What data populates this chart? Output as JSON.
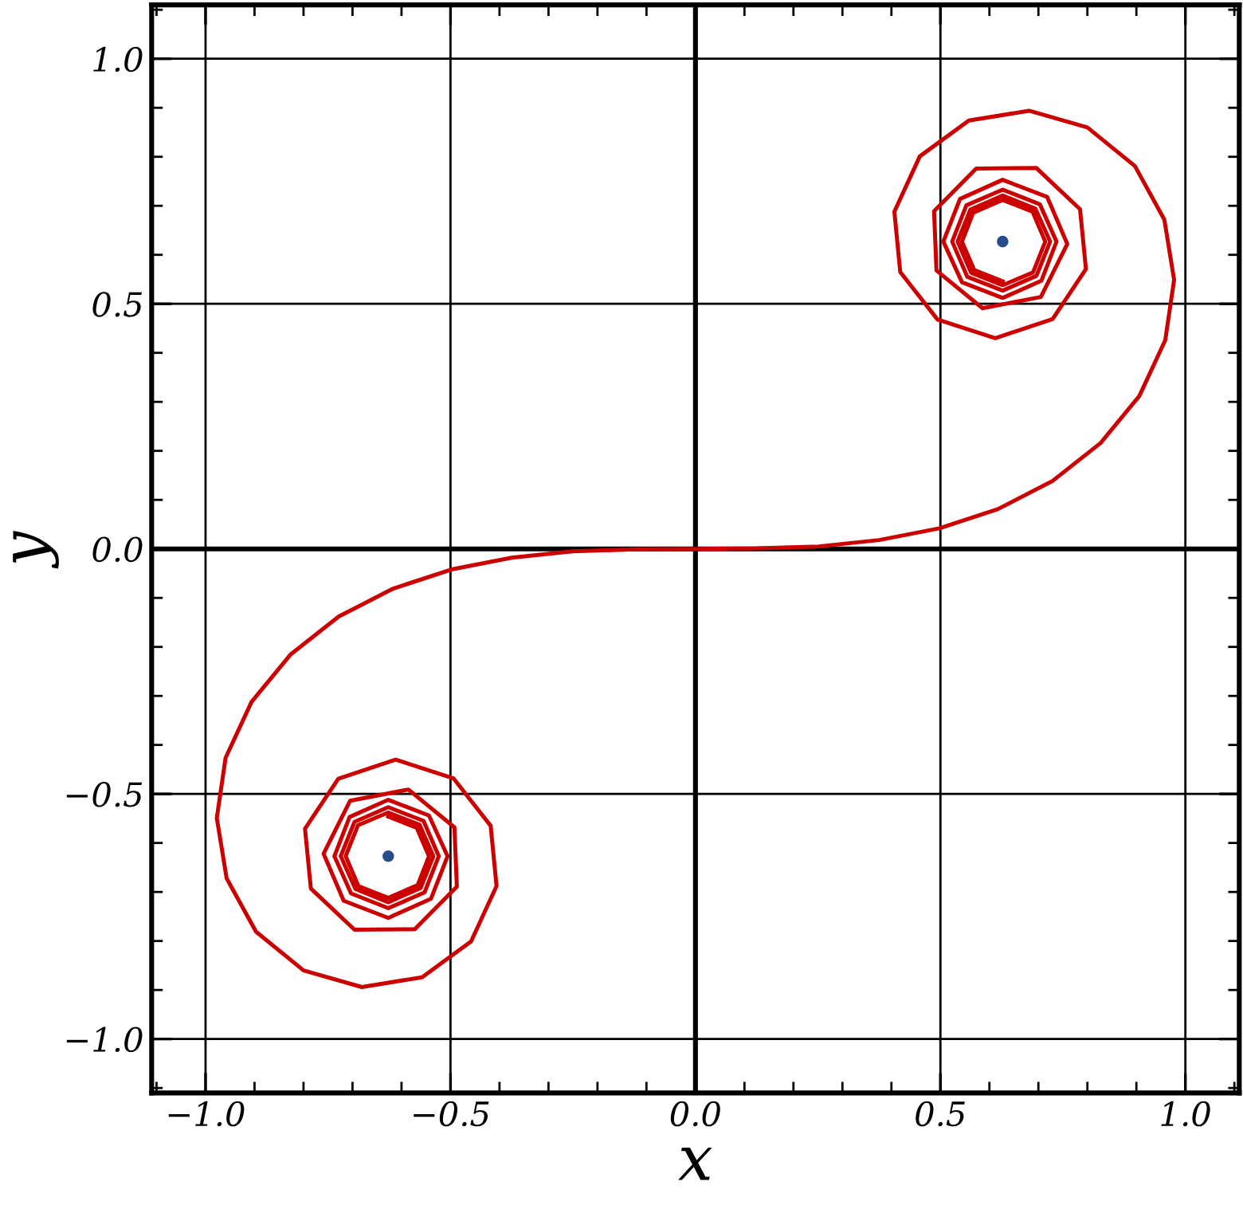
{
  "chart_data": {
    "type": "line",
    "xlabel": "x",
    "ylabel": "y",
    "xlim": [
      -1.11,
      1.11
    ],
    "ylim": [
      -1.11,
      1.11
    ],
    "xticks": [
      {
        "value": -1.0,
        "label": "−1.0"
      },
      {
        "value": -0.5,
        "label": "−0.5"
      },
      {
        "value": 0.0,
        "label": "0.0"
      },
      {
        "value": 0.5,
        "label": "0.5"
      },
      {
        "value": 1.0,
        "label": "1.0"
      }
    ],
    "yticks": [
      {
        "value": -1.0,
        "label": "−1.0"
      },
      {
        "value": -0.5,
        "label": "−0.5"
      },
      {
        "value": 0.0,
        "label": "0.0"
      },
      {
        "value": 0.5,
        "label": "0.5"
      },
      {
        "value": 1.0,
        "label": "1.0"
      }
    ],
    "grid": true,
    "marker": "none",
    "line_style": "solid",
    "series": [
      {
        "color": "#cc0000",
        "x": [
          -0.627,
          -0.569,
          -0.544,
          -0.567,
          -0.627,
          -0.688,
          -0.714,
          -0.689,
          -0.627,
          -0.563,
          -0.535,
          -0.561,
          -0.627,
          -0.694,
          -0.724,
          -0.696,
          -0.627,
          -0.555,
          -0.524,
          -0.553,
          -0.627,
          -0.703,
          -0.737,
          -0.706,
          -0.627,
          -0.544,
          -0.506,
          -0.54,
          -0.627,
          -0.718,
          -0.759,
          -0.705,
          -0.586,
          -0.492,
          -0.487,
          -0.573,
          -0.696,
          -0.785,
          -0.797,
          -0.729,
          -0.612,
          -0.494,
          -0.418,
          -0.406,
          -0.458,
          -0.558,
          -0.681,
          -0.8,
          -0.897,
          -0.957,
          -0.977,
          -0.959,
          -0.906,
          -0.827,
          -0.728,
          -0.617,
          -0.498,
          -0.375,
          -0.251,
          -0.125,
          0,
          0.125,
          0.251,
          0.375,
          0.498,
          0.617,
          0.728,
          0.827,
          0.906,
          0.959,
          0.977,
          0.957,
          0.897,
          0.8,
          0.681,
          0.558,
          0.458,
          0.406,
          0.418,
          0.494,
          0.612,
          0.729,
          0.797,
          0.785,
          0.696,
          0.573,
          0.487,
          0.492,
          0.586,
          0.705,
          0.759,
          0.718,
          0.627,
          0.54,
          0.506,
          0.544,
          0.627,
          0.706,
          0.737,
          0.703,
          0.627,
          0.553,
          0.524,
          0.555,
          0.627,
          0.696,
          0.724,
          0.694,
          0.627,
          0.561,
          0.535,
          0.563,
          0.627,
          0.689,
          0.714,
          0.688,
          0.627,
          0.567,
          0.544,
          0.569,
          0.627
        ],
        "values": [
          -0.546,
          -0.569,
          -0.627,
          -0.686,
          -0.712,
          -0.688,
          -0.627,
          -0.564,
          -0.538,
          -0.563,
          -0.627,
          -0.692,
          -0.721,
          -0.694,
          -0.627,
          -0.557,
          -0.527,
          -0.555,
          -0.627,
          -0.701,
          -0.733,
          -0.703,
          -0.627,
          -0.547,
          -0.512,
          -0.544,
          -0.627,
          -0.714,
          -0.753,
          -0.718,
          -0.622,
          -0.514,
          -0.491,
          -0.568,
          -0.689,
          -0.776,
          -0.777,
          -0.693,
          -0.571,
          -0.469,
          -0.43,
          -0.468,
          -0.565,
          -0.688,
          -0.801,
          -0.874,
          -0.894,
          -0.86,
          -0.781,
          -0.672,
          -0.549,
          -0.426,
          -0.312,
          -0.216,
          -0.138,
          -0.081,
          -0.042,
          -0.018,
          -0.005,
          -0.001,
          0,
          0.001,
          0.005,
          0.018,
          0.042,
          0.081,
          0.138,
          0.216,
          0.312,
          0.426,
          0.549,
          0.672,
          0.781,
          0.86,
          0.894,
          0.874,
          0.801,
          0.688,
          0.565,
          0.468,
          0.43,
          0.469,
          0.571,
          0.693,
          0.777,
          0.776,
          0.689,
          0.568,
          0.491,
          0.514,
          0.622,
          0.718,
          0.753,
          0.714,
          0.627,
          0.544,
          0.512,
          0.547,
          0.627,
          0.703,
          0.733,
          0.701,
          0.627,
          0.555,
          0.527,
          0.557,
          0.627,
          0.694,
          0.721,
          0.692,
          0.627,
          0.563,
          0.538,
          0.564,
          0.627,
          0.688,
          0.712,
          0.686,
          0.627,
          0.569,
          0.546
        ]
      },
      {
        "type": "scatter",
        "color": "#2b4c8c",
        "marker": "circle",
        "x": [
          -0.627,
          0.627
        ],
        "values": [
          -0.627,
          0.627
        ]
      }
    ]
  }
}
